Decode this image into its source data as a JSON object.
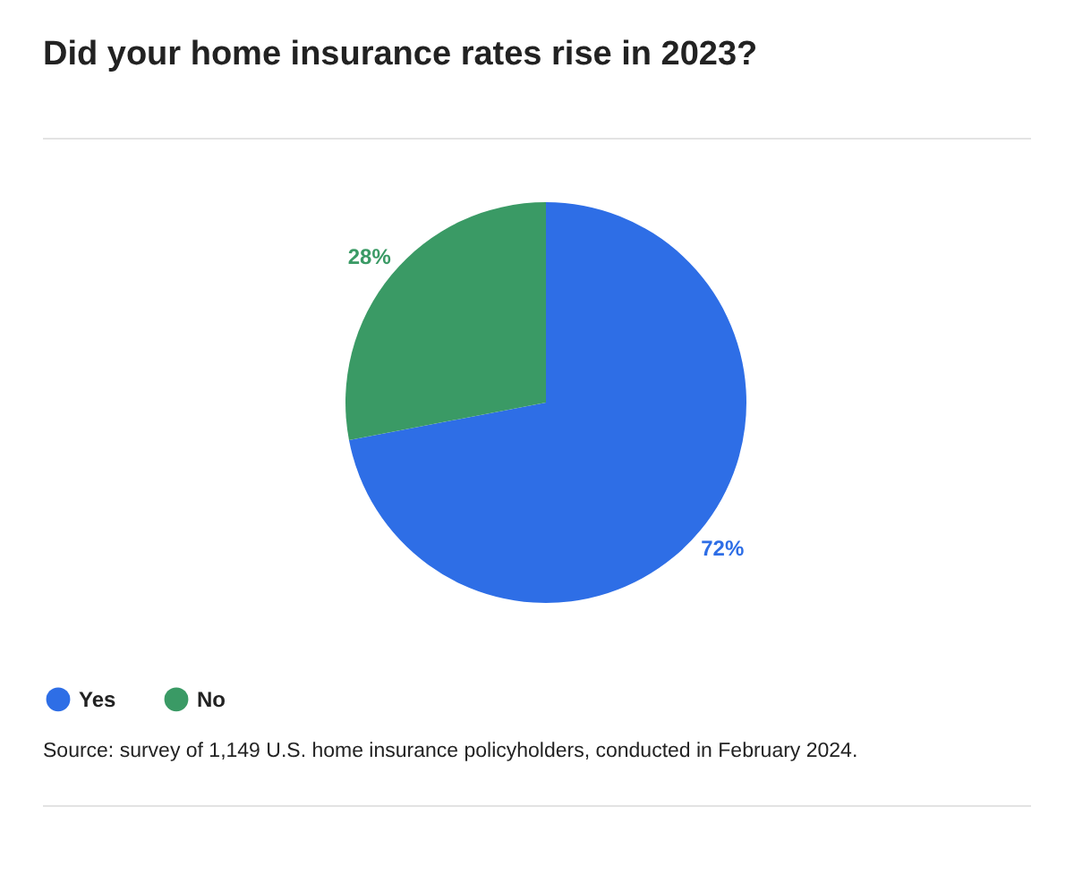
{
  "chart_data": {
    "type": "pie",
    "title": "Did your home insurance rates rise in 2023?",
    "categories": [
      "Yes",
      "No"
    ],
    "values": [
      72,
      28
    ],
    "colors": [
      "#2e6ee6",
      "#3a9a65"
    ],
    "value_labels": [
      "72%",
      "28%"
    ],
    "legend": "bottom",
    "annotations": [
      "Source: survey of 1,149 U.S. home insurance policyholders, conducted in February 2024."
    ]
  }
}
